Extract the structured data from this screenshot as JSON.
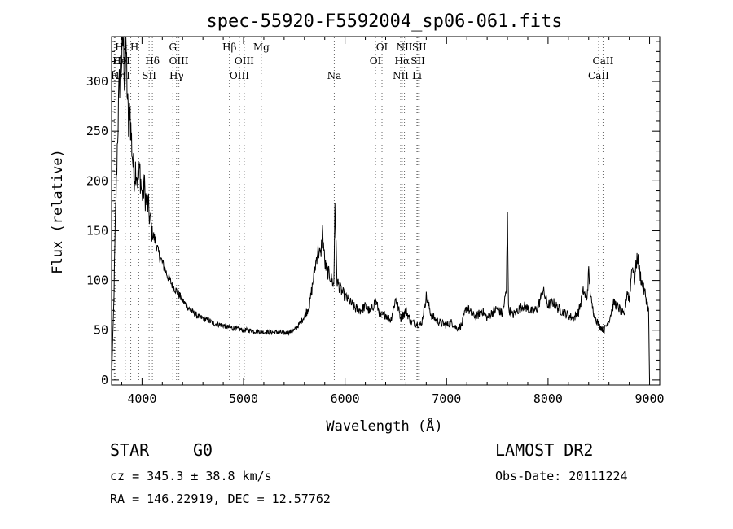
{
  "chart_data": {
    "type": "line",
    "title": "spec-55920-F5592004_sp06-061.fits",
    "xlabel": "Wavelength (Å)",
    "ylabel": "Flux (relative)",
    "xlim": [
      3700,
      9100
    ],
    "ylim": [
      -5,
      345
    ],
    "xticks": [
      4000,
      5000,
      6000,
      7000,
      8000,
      9000
    ],
    "yticks": [
      0,
      50,
      100,
      150,
      200,
      250,
      300
    ],
    "grid": false,
    "series": [
      {
        "x": [
          3700,
          3720,
          3740,
          3760,
          3780,
          3800,
          3815,
          3830,
          3845,
          3860,
          3870,
          3880,
          3890,
          3900,
          3920,
          3940,
          3960,
          3980,
          4000,
          4020,
          4040,
          4060,
          4080,
          4100,
          4130,
          4160,
          4200,
          4250,
          4300,
          4350,
          4400,
          4450,
          4500,
          4550,
          4600,
          4650,
          4700,
          4750,
          4800,
          4850,
          4900,
          4950,
          5000,
          5050,
          5100,
          5150,
          5200,
          5250,
          5300,
          5350,
          5400,
          5450,
          5500,
          5550,
          5600,
          5650,
          5700,
          5730,
          5760,
          5780,
          5800,
          5820,
          5850,
          5870,
          5890,
          5900,
          5920,
          5950,
          6000,
          6050,
          6100,
          6150,
          6200,
          6250,
          6300,
          6350,
          6400,
          6450,
          6500,
          6550,
          6600,
          6650,
          6700,
          6750,
          6800,
          6850,
          6900,
          6950,
          7000,
          7050,
          7100,
          7150,
          7200,
          7230,
          7260,
          7300,
          7350,
          7400,
          7450,
          7500,
          7550,
          7590,
          7600,
          7610,
          7650,
          7700,
          7750,
          7800,
          7850,
          7900,
          7950,
          8000,
          8050,
          8100,
          8150,
          8200,
          8250,
          8300,
          8350,
          8380,
          8400,
          8430,
          8460,
          8500,
          8550,
          8600,
          8650,
          8700,
          8750,
          8780,
          8800,
          8830,
          8850,
          8880,
          8900,
          8930,
          8960,
          8990,
          9000
        ],
        "y": [
          0,
          70,
          170,
          250,
          305,
          325,
          345,
          300,
          330,
          270,
          245,
          280,
          250,
          235,
          205,
          215,
          200,
          210,
          185,
          195,
          180,
          175,
          160,
          148,
          140,
          128,
          118,
          105,
          95,
          88,
          80,
          73,
          68,
          64,
          62,
          60,
          57,
          56,
          55,
          53,
          52,
          51,
          50,
          50,
          49,
          49,
          48,
          48,
          48,
          48,
          47,
          48,
          50,
          56,
          64,
          75,
          110,
          130,
          125,
          150,
          118,
          110,
          105,
          100,
          95,
          180,
          100,
          92,
          84,
          78,
          72,
          70,
          74,
          68,
          80,
          64,
          66,
          60,
          82,
          62,
          70,
          58,
          57,
          55,
          84,
          65,
          60,
          57,
          55,
          58,
          52,
          55,
          75,
          68,
          65,
          64,
          70,
          62,
          68,
          72,
          66,
          90,
          174,
          72,
          65,
          70,
          75,
          72,
          68,
          73,
          90,
          75,
          78,
          72,
          68,
          65,
          62,
          68,
          90,
          80,
          108,
          75,
          65,
          55,
          50,
          60,
          78,
          72,
          64,
          90,
          80,
          118,
          100,
          125,
          110,
          95,
          85,
          70,
          0
        ],
        "color": "#000000"
      }
    ],
    "line_markers": [
      {
        "label": "Hε",
        "x": 3734,
        "row": 0,
        "align": "left"
      },
      {
        "label": "OII",
        "x": 3727,
        "row": 1,
        "align": "left"
      },
      {
        "label": "OII",
        "x": 3729,
        "row": 2,
        "align": "left"
      },
      {
        "label": "Hη",
        "x": 3835,
        "row": 2,
        "align": "right"
      },
      {
        "label": "HeI",
        "x": 3889,
        "row": 1,
        "align": "right"
      },
      {
        "label": "H",
        "x": 3968,
        "row": 0,
        "align": "right"
      },
      {
        "label": "Hδ",
        "x": 4102,
        "row": 1,
        "align": "center"
      },
      {
        "label": "SII",
        "x": 4070,
        "row": 2,
        "align": "center"
      },
      {
        "label": "G",
        "x": 4304,
        "row": 0,
        "align": "center"
      },
      {
        "label": "OIII",
        "x": 4363,
        "row": 1,
        "align": "center"
      },
      {
        "label": "Hγ",
        "x": 4340,
        "row": 2,
        "align": "center"
      },
      {
        "label": "Hβ",
        "x": 4861,
        "row": 0,
        "align": "center"
      },
      {
        "label": "OIII",
        "x": 5007,
        "row": 1,
        "align": "center"
      },
      {
        "label": "OIII",
        "x": 4959,
        "row": 2,
        "align": "center"
      },
      {
        "label": "Mg",
        "x": 5175,
        "row": 0,
        "align": "center"
      },
      {
        "label": "Na",
        "x": 5894,
        "row": 2,
        "align": "center"
      },
      {
        "label": "OI",
        "x": 6364,
        "row": 0,
        "align": "center"
      },
      {
        "label": "OI",
        "x": 6300,
        "row": 1,
        "align": "center"
      },
      {
        "label": "NII",
        "x": 6585,
        "row": 0,
        "align": "center"
      },
      {
        "label": "SII",
        "x": 6731,
        "row": 0,
        "align": "center"
      },
      {
        "label": "Hα",
        "x": 6563,
        "row": 1,
        "align": "center"
      },
      {
        "label": "SII",
        "x": 6717,
        "row": 1,
        "align": "center"
      },
      {
        "label": "NII",
        "x": 6548,
        "row": 2,
        "align": "center"
      },
      {
        "label": "Li",
        "x": 6708,
        "row": 2,
        "align": "center"
      },
      {
        "label": "CaII",
        "x": 8542,
        "row": 1,
        "align": "center"
      },
      {
        "label": "CaII",
        "x": 8498,
        "row": 2,
        "align": "center"
      }
    ]
  },
  "info": {
    "object_class": "STAR",
    "subclass": "G0",
    "survey": "LAMOST DR2",
    "cz": "cz = 345.3 ± 38.8 km/s",
    "obs_date": "Obs-Date: 20111224",
    "radec": "RA = 146.22919, DEC =  12.57762"
  }
}
